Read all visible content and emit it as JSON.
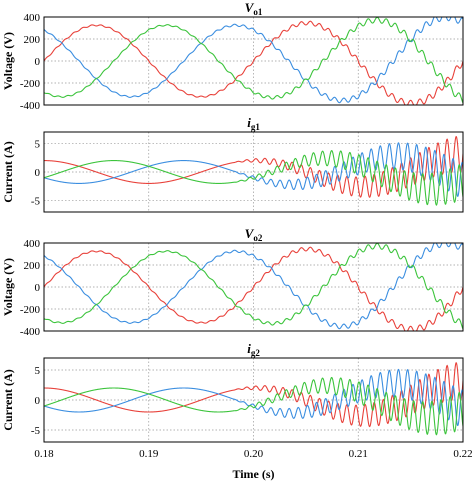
{
  "chart_data": [
    {
      "type": "line",
      "title_main": "V",
      "title_sub": "o1",
      "ylabel": "Voltage (V)",
      "xlim": [
        0.18,
        0.22
      ],
      "ylim": [
        -400,
        400
      ],
      "yticks": [
        "400",
        "200",
        "0",
        "-200",
        "-400"
      ],
      "grid": true,
      "base_amplitude": 325,
      "growth": "oscillatory ripple begins near t=0.20 s, amplitude grows to ~400 V by t=0.22 s",
      "frequency_hz": 50,
      "series": [
        {
          "color": "#e8413a",
          "phase_deg": 0
        },
        {
          "color": "#3b8ee0",
          "phase_deg": 120
        },
        {
          "color": "#3cc43c",
          "phase_deg": 240
        }
      ]
    },
    {
      "type": "line",
      "title_main": "i",
      "title_sub": "g1",
      "ylabel": "Current (A)",
      "xlim": [
        0.18,
        0.22
      ],
      "ylim": [
        -7,
        7
      ],
      "yticks": [
        "5",
        "0",
        "-5"
      ],
      "grid": true,
      "base_amplitude": 2,
      "growth": "high-frequency oscillation starts near t=0.20 s, amplitude grows to ~4 A by t=0.22 s",
      "frequency_hz": 50,
      "series": [
        {
          "color": "#e8413a",
          "phase_deg": 90
        },
        {
          "color": "#3b8ee0",
          "phase_deg": 210
        },
        {
          "color": "#3cc43c",
          "phase_deg": 330
        }
      ]
    },
    {
      "type": "line",
      "title_main": "V",
      "title_sub": "o2",
      "ylabel": "Voltage (V)",
      "xlim": [
        0.18,
        0.22
      ],
      "ylim": [
        -400,
        400
      ],
      "yticks": [
        "400",
        "200",
        "0",
        "-200",
        "-400"
      ],
      "grid": true,
      "base_amplitude": 325,
      "growth": "oscillatory ripple begins near t=0.20 s, amplitude grows to ~400 V by t=0.22 s",
      "frequency_hz": 50,
      "series": [
        {
          "color": "#e8413a",
          "phase_deg": 0
        },
        {
          "color": "#3b8ee0",
          "phase_deg": 120
        },
        {
          "color": "#3cc43c",
          "phase_deg": 240
        }
      ]
    },
    {
      "type": "line",
      "title_main": "i",
      "title_sub": "g2",
      "ylabel": "Current (A)",
      "xlim": [
        0.18,
        0.22
      ],
      "ylim": [
        -7,
        7
      ],
      "yticks": [
        "5",
        "0",
        "-5"
      ],
      "grid": true,
      "base_amplitude": 2,
      "growth": "high-frequency oscillation starts near t=0.20 s, amplitude grows to ~4 A by t=0.22 s",
      "frequency_hz": 50,
      "series": [
        {
          "color": "#e8413a",
          "phase_deg": 90
        },
        {
          "color": "#3b8ee0",
          "phase_deg": 210
        },
        {
          "color": "#3cc43c",
          "phase_deg": 330
        }
      ]
    }
  ],
  "shared_x": {
    "xlabel": "Time (s)",
    "xticks": [
      "0.18",
      "0.19",
      "0.20",
      "0.21",
      "0.22"
    ]
  }
}
